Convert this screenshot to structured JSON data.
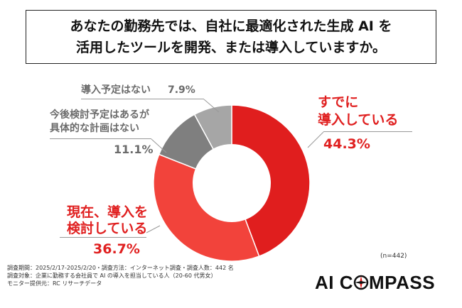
{
  "title_lines": [
    "あなたの勤務先では、自社に最適化された生成 AI を",
    "活用したツールを開発、または導入していますか。"
  ],
  "chart_data": {
    "type": "pie",
    "donut": true,
    "slices": [
      {
        "label": "すでに導入している",
        "value": 44.3,
        "color": "#e01e1e",
        "pct_text": "44.3%"
      },
      {
        "label": "現在、導入を検討している",
        "value": 36.7,
        "color": "#f2433b",
        "pct_text": "36.7%"
      },
      {
        "label": "今後検討予定はあるが具体的な計画はない",
        "value": 11.1,
        "color": "#7f7f7f",
        "pct_text": "11.1%"
      },
      {
        "label": "導入予定はない",
        "value": 7.9,
        "color": "#a6a6a6",
        "pct_text": "7.9%"
      }
    ],
    "n_label": "(n=442)"
  },
  "labels": {
    "already_line1": "すでに",
    "already_line2": "導入している",
    "already_pct": "44.3%",
    "considering_line1": "現在、導入を",
    "considering_line2": "検討している",
    "considering_pct": "36.7%",
    "future_line1": "今後検討予定はあるが",
    "future_line2": "具体的な計画はない",
    "future_pct": "11.1%",
    "none_text": "導入予定はない",
    "none_pct": "7.9%"
  },
  "footer": {
    "line1": "調査期間：2025/2/17-2025/2/20・調査方法：インターネット調査・調査人数：442 名",
    "line2": "調査対象：企業に勤務する会社員で AI の導入を担当している人（20-60 代男女）",
    "line3": "モニター提供元：RC リサーチデータ"
  },
  "logo": {
    "left": "AI C",
    "right": "MPASS"
  }
}
